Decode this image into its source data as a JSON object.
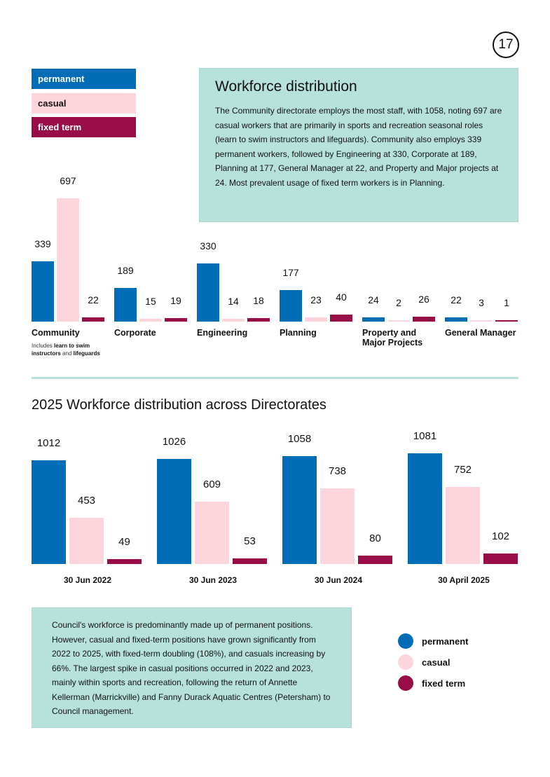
{
  "page_number": "17",
  "legend": [
    {
      "label": "permanent",
      "color": "#006db6",
      "text_color": "#ffffff"
    },
    {
      "label": "casual",
      "color": "#fcd5dd",
      "text_color": "#111111"
    },
    {
      "label": "fixed term",
      "color": "#980d47",
      "text_color": "#ffffff"
    }
  ],
  "summary": {
    "title": "Workforce distribution",
    "body": "The Community directorate employs the most staff, with 1058, noting 697 are casual workers that are primarily in sports and recreation seasonal roles (learn to swim instructors and lifeguards).  Community also employs 339 permanent workers, followed by Engineering at 330, Corporate at 189, Planning at 177, General Manager at 22, and Property and Major projects at 24. Most prevalent usage of fixed term workers is in Planning."
  },
  "community_note": {
    "pre": "Includes ",
    "b1": "learn to swim",
    "mid1": " ",
    "b2": "instructors",
    "mid2": " and ",
    "b3": "lifeguards"
  },
  "section_title": "2025 Workforce distribution across Directorates",
  "chart_data": [
    {
      "type": "bar",
      "title": "",
      "categories": [
        "Community",
        "Corporate",
        "Engineering",
        "Planning",
        "Property and Major Projects",
        "General Manager"
      ],
      "series": [
        {
          "name": "permanent",
          "values": [
            339,
            189,
            330,
            177,
            24,
            22
          ]
        },
        {
          "name": "casual",
          "values": [
            697,
            15,
            14,
            23,
            2,
            3
          ]
        },
        {
          "name": "fixed term",
          "values": [
            22,
            19,
            18,
            40,
            26,
            1
          ]
        }
      ]
    },
    {
      "type": "bar",
      "title": "",
      "categories": [
        "30 Jun 2022",
        "30 Jun 2023",
        "30 Jun 2024",
        "30 April 2025"
      ],
      "series": [
        {
          "name": "permanent",
          "values": [
            1012,
            1026,
            1058,
            1081
          ]
        },
        {
          "name": "casual",
          "values": [
            453,
            609,
            738,
            752
          ]
        },
        {
          "name": "fixed term",
          "values": [
            49,
            53,
            80,
            102
          ]
        }
      ]
    }
  ],
  "bottom_text": "Council's workforce is predominantly made up of permanent positions. However, casual and fixed-term positions have grown significantly from 2022 to 2025, with fixed-term doubling (108%), and casuals increasing by 66%. The largest spike in casual positions occurred in 2022 and 2023, mainly within sports and recreation, following the return of Annette Kellerman (Marrickville) and Fanny Durack Aquatic Centres (Petersham) to Council management.",
  "bottom_legend": [
    "permanent",
    "casual",
    "fixed term"
  ]
}
